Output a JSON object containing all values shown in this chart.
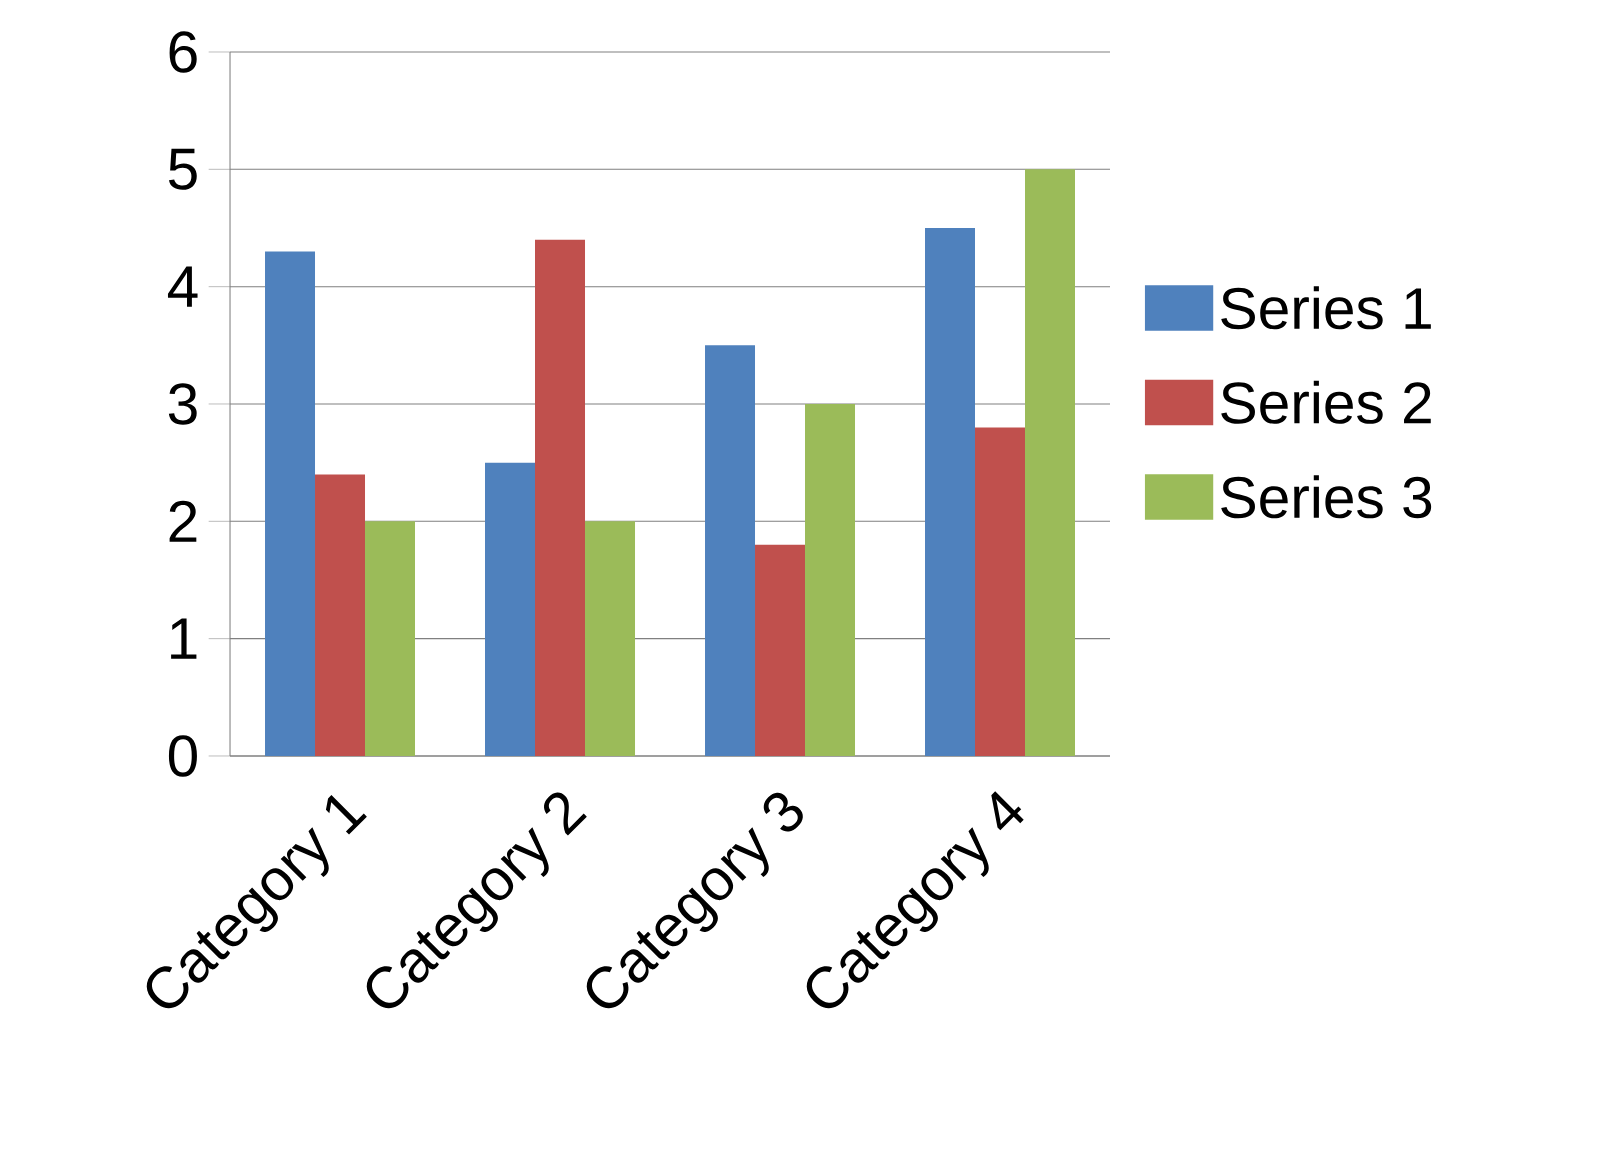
{
  "chart_data": {
    "type": "bar",
    "categories": [
      "Category 1",
      "Category 2",
      "Category 3",
      "Category 4"
    ],
    "series": [
      {
        "name": "Series 1",
        "color": "#4f81bd",
        "values": [
          4.3,
          2.5,
          3.5,
          4.5
        ]
      },
      {
        "name": "Series 2",
        "color": "#c0504d",
        "values": [
          2.4,
          4.4,
          1.8,
          2.8
        ]
      },
      {
        "name": "Series 3",
        "color": "#9bbb59",
        "values": [
          2,
          2,
          3,
          5
        ]
      }
    ],
    "ylim": [
      0,
      6
    ],
    "yticks": [
      0,
      1,
      2,
      3,
      4,
      5,
      6
    ],
    "grid": "y",
    "legend": "right"
  }
}
